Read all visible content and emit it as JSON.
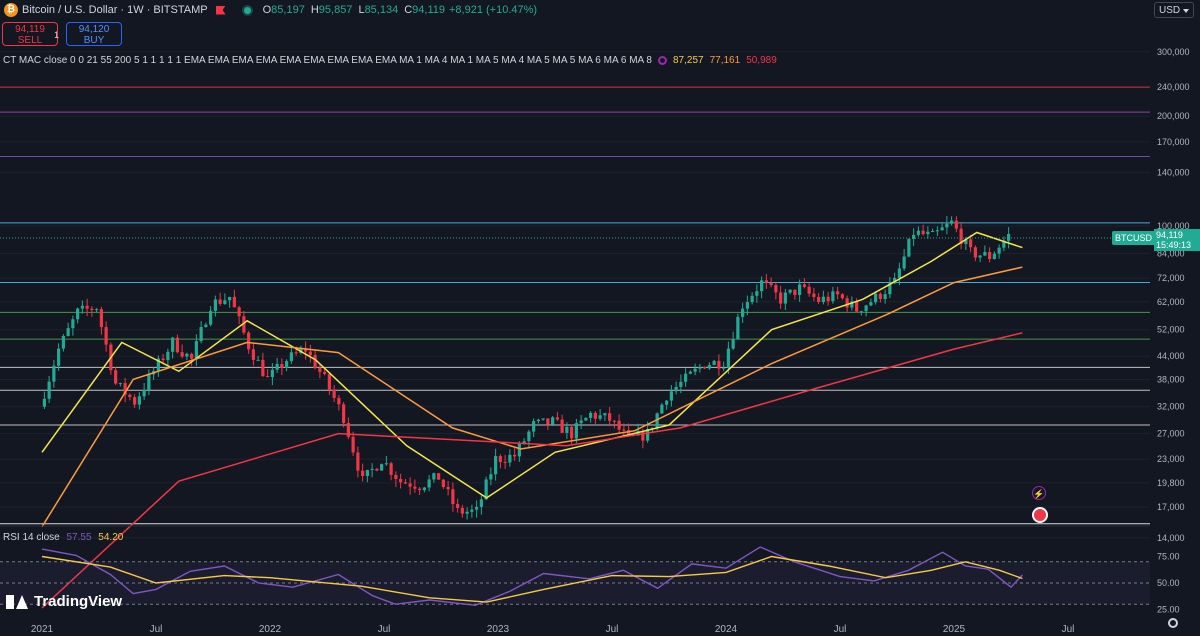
{
  "header": {
    "symbol": "Bitcoin / U.S. Dollar · 1W · BITSTAMP",
    "open_label": "O",
    "open": "85,197",
    "high_label": "H",
    "high": "95,857",
    "low_label": "L",
    "low": "85,134",
    "close_label": "C",
    "close": "94,119",
    "change": "+8,921 (+10.47%)"
  },
  "trade": {
    "sell_price": "94,119",
    "sell_label": "SELL",
    "spread": "1",
    "buy_price": "94,120",
    "buy_label": "BUY"
  },
  "indicator": {
    "label": "CT MAC close 0 0 21 55 200 5 1 1 1 1 1 EMA EMA EMA EMA EMA EMA EMA EMA EMA MA 1 MA 4 MA 1 MA 5 MA 4 MA 5 MA 5 MA 6 MA 6 MA 8",
    "value_1": "87,257",
    "value_2": "77,161",
    "value_3": "50,989"
  },
  "rsi_label": {
    "name": "RSI 14 close",
    "rsi_value": "57.55",
    "ma_value": "54.20"
  },
  "currency": "USD",
  "brand": "TradingView",
  "last_price_tag": {
    "ticker": "BTCUSD",
    "price": "94,119",
    "countdown": "15:49:13"
  },
  "colors": {
    "background": "#131722",
    "up": "#22ab94",
    "down": "#f23645",
    "ema21": "#f7e64a",
    "ema55": "#ff9a3d",
    "ema200": "#f23645",
    "rsi": "#7e57c2",
    "rsi_ma": "#f7c948"
  },
  "chart_data": [
    {
      "type": "candlestick",
      "title": "Bitcoin / U.S. Dollar · 1W · BITSTAMP",
      "x_ticks": [
        "2021",
        "Jul",
        "2022",
        "Jul",
        "2023",
        "Jul",
        "2024",
        "Jul",
        "2025",
        "Jul"
      ],
      "y_scale": "log",
      "y_ticks": [
        "300,000",
        "240,000",
        "200,000",
        "170,000",
        "140,000",
        "100,000",
        "84,000",
        "72,000",
        "62,000",
        "52,000",
        "44,000",
        "38,000",
        "32,000",
        "27,000",
        "23,000",
        "19,800",
        "17,000",
        "14,000"
      ],
      "ylim": [
        14000,
        360000
      ],
      "price_path": [
        [
          "2021-01",
          32000
        ],
        [
          "2021-02",
          46000
        ],
        [
          "2021-03",
          58000
        ],
        [
          "2021-04",
          60000
        ],
        [
          "2021-05",
          37000
        ],
        [
          "2021-06",
          33000
        ],
        [
          "2021-07",
          40000
        ],
        [
          "2021-08",
          48000
        ],
        [
          "2021-09",
          43000
        ],
        [
          "2021-10",
          61000
        ],
        [
          "2021-11",
          64000
        ],
        [
          "2021-12",
          47000
        ],
        [
          "2022-01",
          38000
        ],
        [
          "2022-02",
          43000
        ],
        [
          "2022-03",
          46000
        ],
        [
          "2022-04",
          38000
        ],
        [
          "2022-05",
          30000
        ],
        [
          "2022-06",
          20000
        ],
        [
          "2022-07",
          23000
        ],
        [
          "2022-08",
          20000
        ],
        [
          "2022-09",
          19500
        ],
        [
          "2022-10",
          20500
        ],
        [
          "2022-11",
          16500
        ],
        [
          "2022-12",
          16500
        ],
        [
          "2023-01",
          23000
        ],
        [
          "2023-02",
          23500
        ],
        [
          "2023-03",
          28500
        ],
        [
          "2023-04",
          29000
        ],
        [
          "2023-05",
          27000
        ],
        [
          "2023-06",
          30500
        ],
        [
          "2023-07",
          29500
        ],
        [
          "2023-08",
          26000
        ],
        [
          "2023-09",
          27000
        ],
        [
          "2023-10",
          34500
        ],
        [
          "2023-11",
          38000
        ],
        [
          "2023-12",
          42000
        ],
        [
          "2024-01",
          42500
        ],
        [
          "2024-02",
          61000
        ],
        [
          "2024-03",
          70000
        ],
        [
          "2024-04",
          63000
        ],
        [
          "2024-05",
          67500
        ],
        [
          "2024-06",
          62500
        ],
        [
          "2024-07",
          64500
        ],
        [
          "2024-08",
          59000
        ],
        [
          "2024-09",
          63500
        ],
        [
          "2024-10",
          70000
        ],
        [
          "2024-11",
          96000
        ],
        [
          "2024-12",
          93500
        ],
        [
          "2025-01",
          102000
        ],
        [
          "2025-02",
          84500
        ],
        [
          "2025-03",
          82500
        ],
        [
          "2025-04",
          94119
        ]
      ],
      "ema_21": [
        [
          2021.0,
          24000
        ],
        [
          2021.35,
          48000
        ],
        [
          2021.6,
          40000
        ],
        [
          2021.9,
          55000
        ],
        [
          2022.2,
          43000
        ],
        [
          2022.6,
          25000
        ],
        [
          2022.95,
          18000
        ],
        [
          2023.25,
          24000
        ],
        [
          2023.75,
          28500
        ],
        [
          2024.2,
          52000
        ],
        [
          2024.6,
          63000
        ],
        [
          2024.9,
          80000
        ],
        [
          2025.1,
          96000
        ],
        [
          2025.3,
          87257
        ]
      ],
      "ema_55": [
        [
          2021.0,
          15000
        ],
        [
          2021.4,
          38000
        ],
        [
          2021.9,
          48000
        ],
        [
          2022.3,
          45000
        ],
        [
          2022.8,
          28000
        ],
        [
          2023.1,
          24500
        ],
        [
          2023.6,
          27500
        ],
        [
          2024.2,
          42000
        ],
        [
          2024.7,
          57000
        ],
        [
          2025.0,
          70000
        ],
        [
          2025.3,
          77161
        ]
      ],
      "ema_200": [
        [
          2021.0,
          9000
        ],
        [
          2021.6,
          20000
        ],
        [
          2022.3,
          27000
        ],
        [
          2022.8,
          26000
        ],
        [
          2023.3,
          25000
        ],
        [
          2023.8,
          28000
        ],
        [
          2024.4,
          36000
        ],
        [
          2025.0,
          46000
        ],
        [
          2025.3,
          50989
        ]
      ],
      "horizontal_levels": [
        240000,
        205000,
        155000,
        102000,
        70000,
        58000,
        49000,
        41000,
        35500,
        28500,
        15300
      ],
      "last_price": 94119
    },
    {
      "type": "line",
      "title": "RSI 14 close",
      "y_ticks": [
        "75.00",
        "50.00",
        "25.00"
      ],
      "ylim": [
        20,
        85
      ],
      "series": [
        {
          "name": "RSI",
          "values": [
            [
              2021.0,
              82
            ],
            [
              2021.15,
              76
            ],
            [
              2021.3,
              58
            ],
            [
              2021.4,
              40
            ],
            [
              2021.5,
              44
            ],
            [
              2021.65,
              61
            ],
            [
              2021.8,
              66
            ],
            [
              2021.95,
              50
            ],
            [
              2022.1,
              46
            ],
            [
              2022.3,
              58
            ],
            [
              2022.45,
              38
            ],
            [
              2022.55,
              30
            ],
            [
              2022.7,
              34
            ],
            [
              2022.9,
              29
            ],
            [
              2023.05,
              42
            ],
            [
              2023.2,
              59
            ],
            [
              2023.4,
              54
            ],
            [
              2023.55,
              62
            ],
            [
              2023.7,
              45
            ],
            [
              2023.85,
              68
            ],
            [
              2024.0,
              64
            ],
            [
              2024.15,
              84
            ],
            [
              2024.3,
              70
            ],
            [
              2024.5,
              56
            ],
            [
              2024.65,
              52
            ],
            [
              2024.8,
              62
            ],
            [
              2024.95,
              79
            ],
            [
              2025.05,
              66
            ],
            [
              2025.15,
              63
            ],
            [
              2025.25,
              46
            ],
            [
              2025.3,
              57.55
            ]
          ]
        },
        {
          "name": "MA",
          "values": [
            [
              2021.0,
              75
            ],
            [
              2021.3,
              65
            ],
            [
              2021.5,
              50
            ],
            [
              2021.8,
              57
            ],
            [
              2022.0,
              55
            ],
            [
              2022.4,
              47
            ],
            [
              2022.7,
              36
            ],
            [
              2022.95,
              32
            ],
            [
              2023.2,
              44
            ],
            [
              2023.5,
              57
            ],
            [
              2023.75,
              56
            ],
            [
              2024.0,
              60
            ],
            [
              2024.2,
              75
            ],
            [
              2024.45,
              66
            ],
            [
              2024.7,
              55
            ],
            [
              2024.9,
              62
            ],
            [
              2025.05,
              70
            ],
            [
              2025.2,
              62
            ],
            [
              2025.3,
              54.2
            ]
          ]
        }
      ]
    }
  ]
}
